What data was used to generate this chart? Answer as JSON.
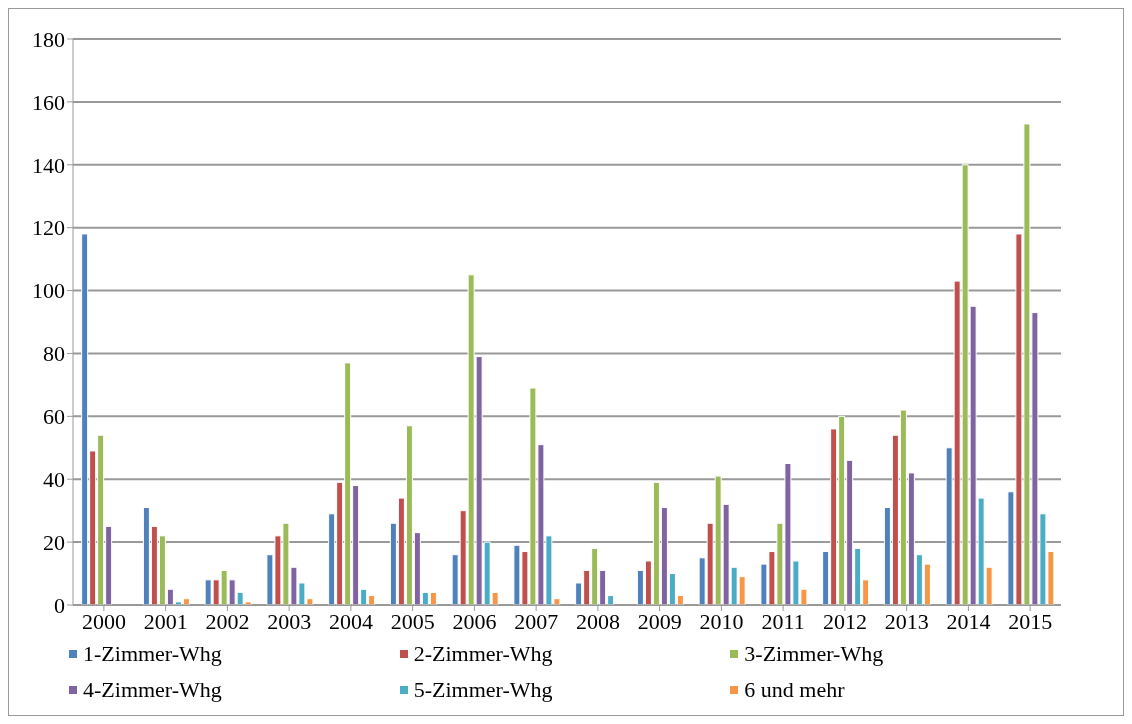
{
  "chart_data": {
    "type": "bar",
    "categories": [
      "2000",
      "2001",
      "2002",
      "2003",
      "2004",
      "2005",
      "2006",
      "2007",
      "2008",
      "2009",
      "2010",
      "2011",
      "2012",
      "2013",
      "2014",
      "2015"
    ],
    "series": [
      {
        "name": "1-Zimmer-Whg",
        "color": "#4f81bd",
        "values": [
          118,
          31,
          8,
          16,
          29,
          26,
          16,
          19,
          7,
          11,
          15,
          13,
          17,
          31,
          50,
          36
        ]
      },
      {
        "name": "2-Zimmer-Whg",
        "color": "#c0504d",
        "values": [
          49,
          25,
          8,
          22,
          39,
          34,
          30,
          17,
          11,
          14,
          26,
          17,
          56,
          54,
          103,
          118
        ]
      },
      {
        "name": "3-Zimmer-Whg",
        "color": "#9bbb59",
        "values": [
          54,
          22,
          11,
          26,
          77,
          57,
          105,
          69,
          18,
          39,
          41,
          26,
          60,
          62,
          140,
          153
        ]
      },
      {
        "name": "4-Zimmer-Whg",
        "color": "#8064a2",
        "values": [
          25,
          5,
          8,
          12,
          38,
          23,
          79,
          51,
          11,
          31,
          32,
          45,
          46,
          42,
          95,
          93
        ]
      },
      {
        "name": "5-Zimmer-Whg",
        "color": "#4bacc6",
        "values": [
          0,
          1,
          4,
          7,
          5,
          4,
          20,
          22,
          3,
          10,
          12,
          14,
          18,
          16,
          34,
          29
        ]
      },
      {
        "name": "6 und mehr",
        "color": "#f79646",
        "values": [
          0,
          2,
          1,
          2,
          3,
          4,
          4,
          2,
          0,
          3,
          9,
          5,
          8,
          13,
          12,
          17
        ]
      }
    ],
    "ylim": [
      0,
      180
    ],
    "yticks": [
      0,
      20,
      40,
      60,
      80,
      100,
      120,
      140,
      160,
      180
    ],
    "grid": "y",
    "legend": "bottom"
  }
}
